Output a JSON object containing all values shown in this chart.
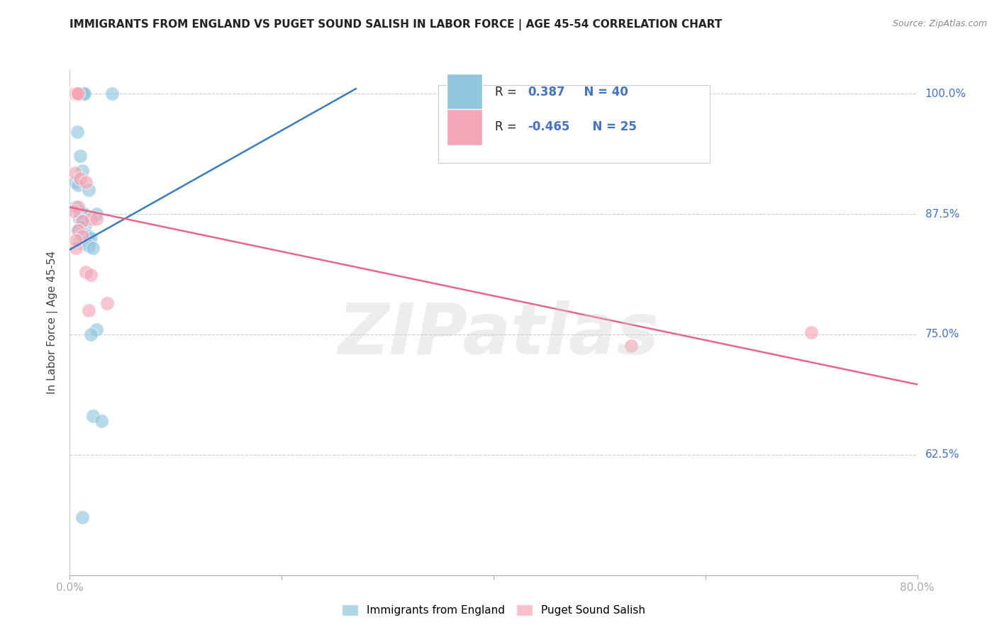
{
  "title": "IMMIGRANTS FROM ENGLAND VS PUGET SOUND SALISH IN LABOR FORCE | AGE 45-54 CORRELATION CHART",
  "source": "Source: ZipAtlas.com",
  "ylabel": "In Labor Force | Age 45-54",
  "xlim": [
    0.0,
    0.8
  ],
  "ylim": [
    0.5,
    1.025
  ],
  "yticks": [
    0.625,
    0.75,
    0.875,
    1.0
  ],
  "ytick_labels": [
    "62.5%",
    "75.0%",
    "87.5%",
    "100.0%"
  ],
  "xticks": [
    0.0,
    0.2,
    0.4,
    0.6,
    0.8
  ],
  "xtick_labels": [
    "0.0%",
    "",
    "",
    "",
    "80.0%"
  ],
  "legend1_label": "Immigrants from England",
  "legend2_label": "Puget Sound Salish",
  "blue_color": "#92c5de",
  "pink_color": "#f4a6b8",
  "blue_line_color": "#3b7bbf",
  "pink_line_color": "#e8658a",
  "text_color": "#4472c4",
  "blue_scatter": [
    [
      0.002,
      1.0
    ],
    [
      0.003,
      1.0
    ],
    [
      0.004,
      1.0
    ],
    [
      0.005,
      1.0
    ],
    [
      0.006,
      1.0
    ],
    [
      0.007,
      1.0
    ],
    [
      0.008,
      1.0
    ],
    [
      0.009,
      1.0
    ],
    [
      0.01,
      1.0
    ],
    [
      0.011,
      1.0
    ],
    [
      0.012,
      1.0
    ],
    [
      0.013,
      1.0
    ],
    [
      0.014,
      1.0
    ],
    [
      0.04,
      1.0
    ],
    [
      0.007,
      0.96
    ],
    [
      0.01,
      0.935
    ],
    [
      0.012,
      0.92
    ],
    [
      0.005,
      0.908
    ],
    [
      0.008,
      0.905
    ],
    [
      0.018,
      0.9
    ],
    [
      0.006,
      0.882
    ],
    [
      0.01,
      0.878
    ],
    [
      0.014,
      0.875
    ],
    [
      0.025,
      0.875
    ],
    [
      0.009,
      0.87
    ],
    [
      0.012,
      0.868
    ],
    [
      0.015,
      0.865
    ],
    [
      0.01,
      0.862
    ],
    [
      0.008,
      0.858
    ],
    [
      0.012,
      0.855
    ],
    [
      0.018,
      0.852
    ],
    [
      0.02,
      0.85
    ],
    [
      0.01,
      0.848
    ],
    [
      0.012,
      0.845
    ],
    [
      0.018,
      0.842
    ],
    [
      0.022,
      0.84
    ],
    [
      0.025,
      0.755
    ],
    [
      0.02,
      0.75
    ],
    [
      0.022,
      0.665
    ],
    [
      0.03,
      0.66
    ],
    [
      0.012,
      0.56
    ]
  ],
  "pink_scatter": [
    [
      0.002,
      1.0
    ],
    [
      0.003,
      1.0
    ],
    [
      0.004,
      1.0
    ],
    [
      0.005,
      1.0
    ],
    [
      0.006,
      1.0
    ],
    [
      0.007,
      1.0
    ],
    [
      0.008,
      1.0
    ],
    [
      0.005,
      0.918
    ],
    [
      0.01,
      0.912
    ],
    [
      0.015,
      0.908
    ],
    [
      0.008,
      0.882
    ],
    [
      0.004,
      0.878
    ],
    [
      0.02,
      0.87
    ],
    [
      0.012,
      0.868
    ],
    [
      0.025,
      0.87
    ],
    [
      0.008,
      0.858
    ],
    [
      0.012,
      0.852
    ],
    [
      0.006,
      0.84
    ],
    [
      0.015,
      0.815
    ],
    [
      0.02,
      0.812
    ],
    [
      0.035,
      0.782
    ],
    [
      0.018,
      0.775
    ],
    [
      0.53,
      0.738
    ],
    [
      0.7,
      0.752
    ],
    [
      0.006,
      0.848
    ]
  ],
  "blue_trendline_x": [
    0.0,
    0.27
  ],
  "blue_trendline_y": [
    0.838,
    1.005
  ],
  "pink_trendline_x": [
    0.0,
    0.8
  ],
  "pink_trendline_y": [
    0.882,
    0.698
  ]
}
